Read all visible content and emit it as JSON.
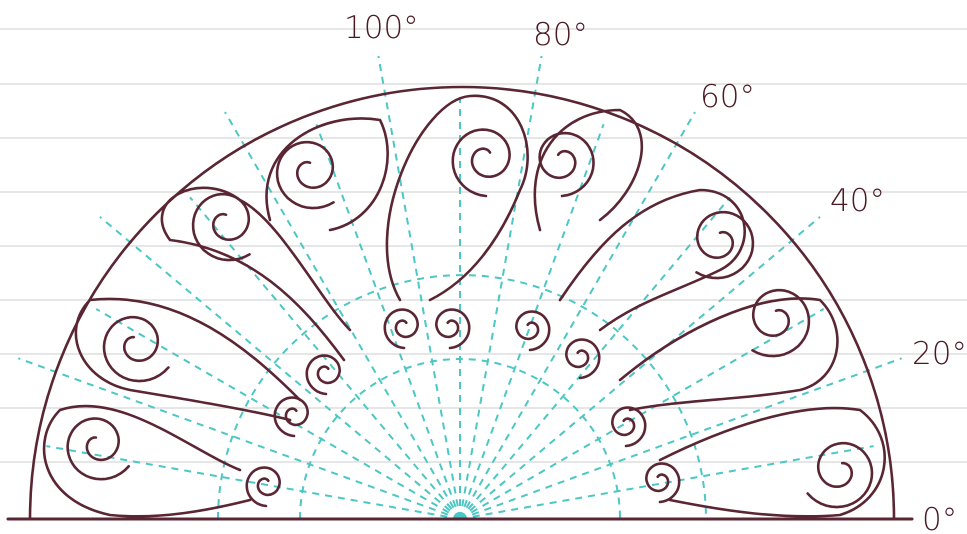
{
  "angle_labels": {
    "a0": "0°",
    "a20": "20°",
    "a40": "40°",
    "a60": "60°",
    "a80": "80°",
    "a100": "100°"
  },
  "colors": {
    "ink": "#5a2633",
    "guide": "#4cc7c4",
    "ruled_line": "#d8d8d8",
    "paper": "#ffffff"
  },
  "guide_angles_deg": [
    0,
    10,
    20,
    30,
    40,
    50,
    60,
    70,
    80,
    90,
    100,
    110,
    120,
    130,
    140,
    150,
    160,
    170,
    180
  ]
}
